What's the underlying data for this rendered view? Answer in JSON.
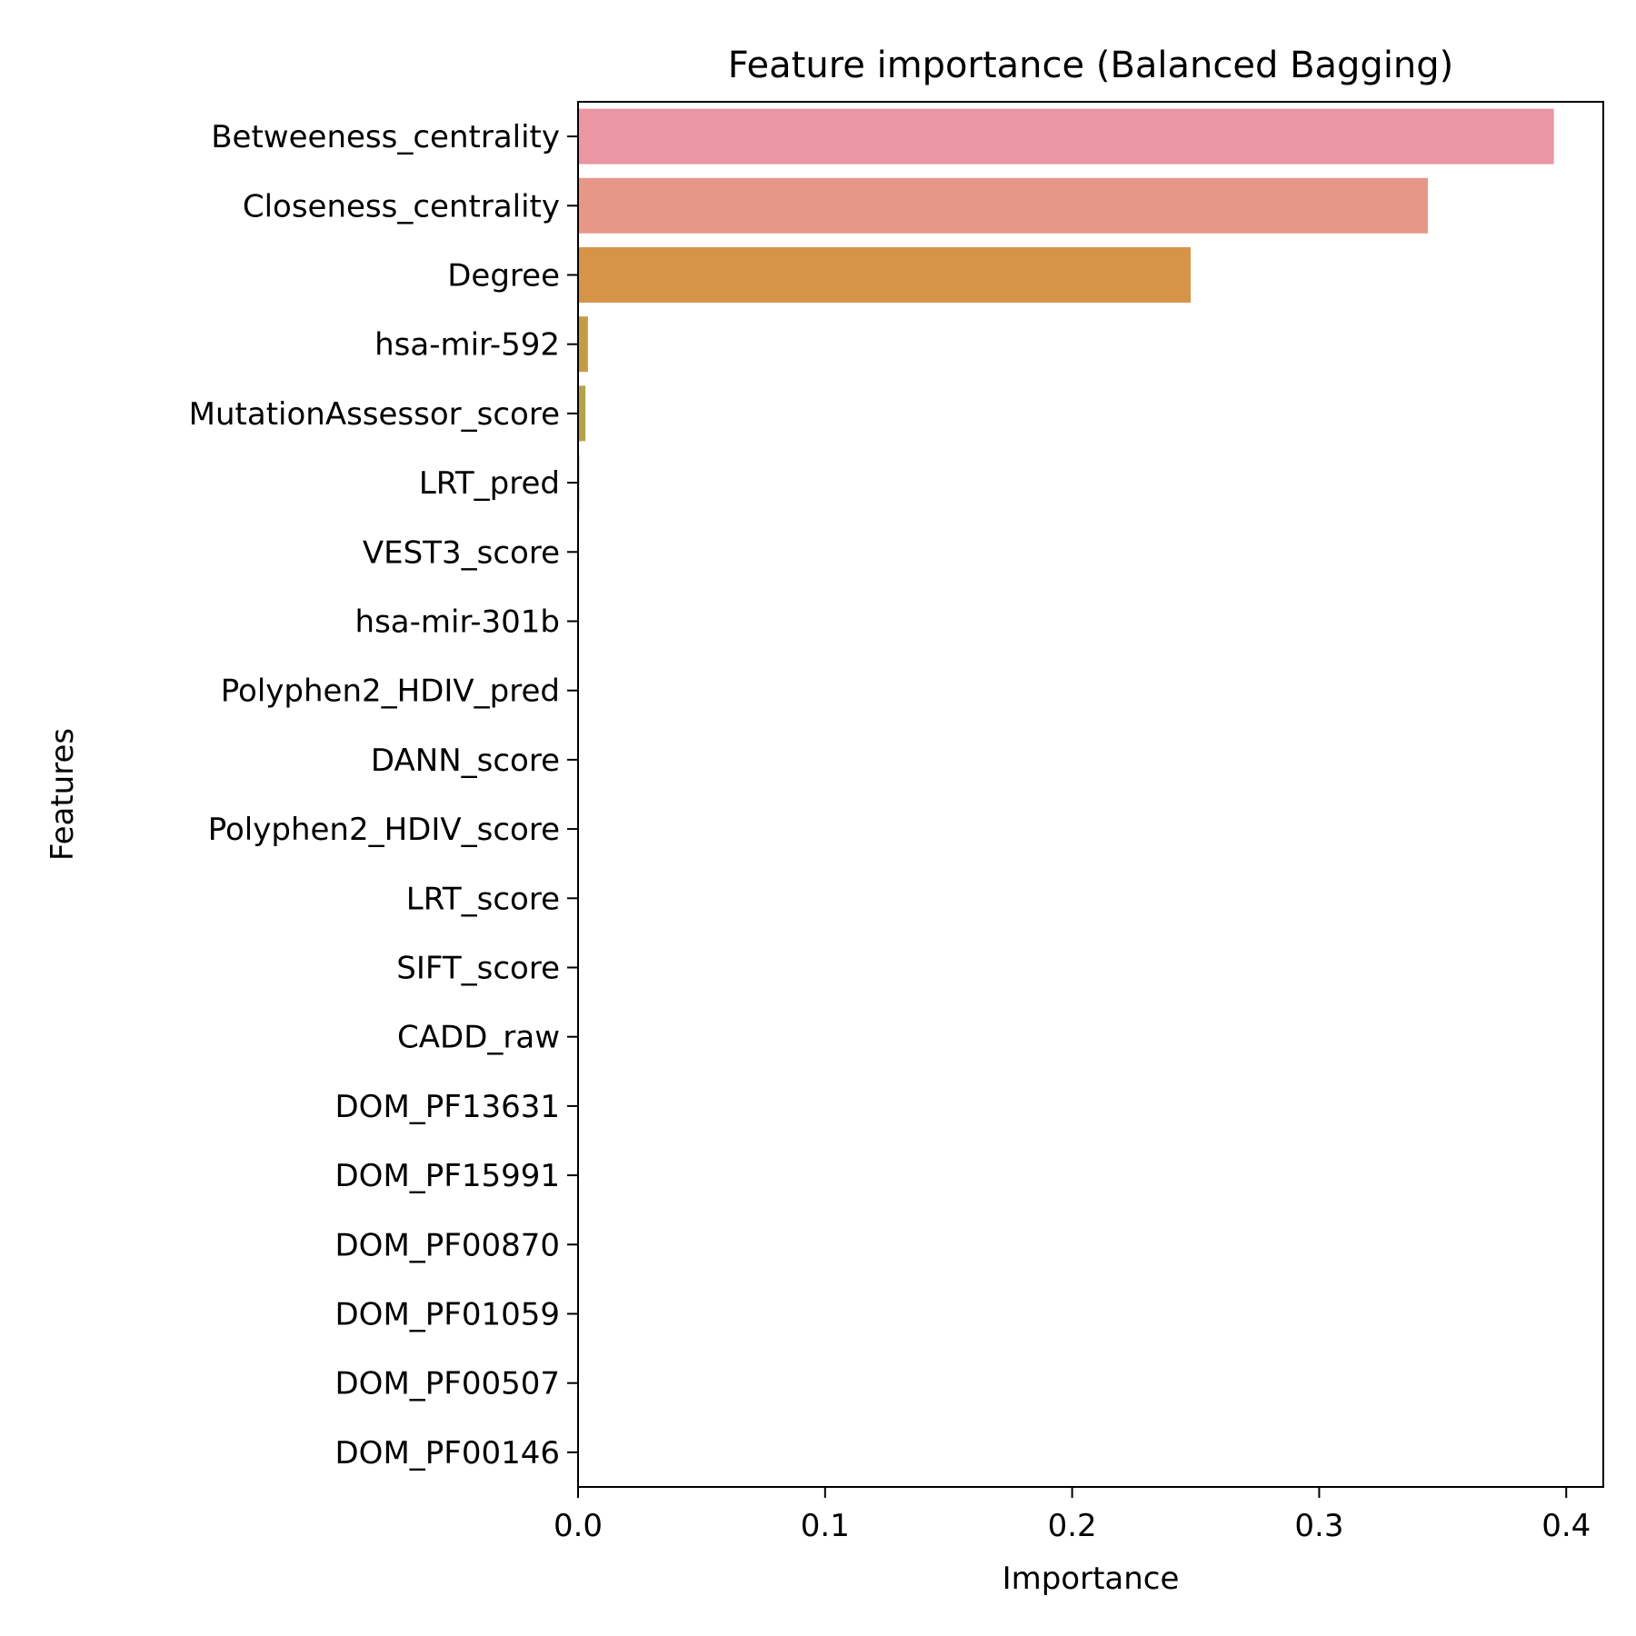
{
  "chart_data": {
    "type": "bar",
    "orientation": "horizontal",
    "title": "Feature importance (Balanced Bagging)",
    "xlabel": "Importance",
    "ylabel": "Features",
    "xlim": [
      0,
      0.415
    ],
    "xticks": [
      0.0,
      0.1,
      0.2,
      0.3,
      0.4
    ],
    "xtick_labels": [
      "0.0",
      "0.1",
      "0.2",
      "0.3",
      "0.4"
    ],
    "grid": false,
    "categories": [
      "Betweeness_centrality",
      "Closeness_centrality",
      "Degree",
      "hsa-mir-592",
      "MutationAssessor_score",
      "LRT_pred",
      "VEST3_score",
      "hsa-mir-301b",
      "Polyphen2_HDIV_pred",
      "DANN_score",
      "Polyphen2_HDIV_score",
      "LRT_score",
      "SIFT_score",
      "CADD_raw",
      "DOM_PF13631",
      "DOM_PF15991",
      "DOM_PF00870",
      "DOM_PF01059",
      "DOM_PF00507",
      "DOM_PF00146"
    ],
    "values": [
      0.395,
      0.344,
      0.248,
      0.004,
      0.003,
      0.0005,
      0.0003,
      0.0001,
      0.0001,
      0.0001,
      0.0,
      0.0,
      0.0,
      0.0,
      0.0,
      0.0,
      0.0,
      0.0,
      0.0,
      0.0
    ],
    "colors": [
      "#ea96a3",
      "#e69788",
      "#d59448",
      "#c49c48",
      "#b3a24a",
      "#a0a94b",
      "#8cae4c",
      "#6ab24e",
      "#4eb46a",
      "#50b395",
      "#52b1a6",
      "#53afb1",
      "#55aebb",
      "#57abc8",
      "#5da8d6",
      "#7ea1e0",
      "#a997e6",
      "#c98de6",
      "#e284dc",
      "#ea8bc0"
    ]
  }
}
